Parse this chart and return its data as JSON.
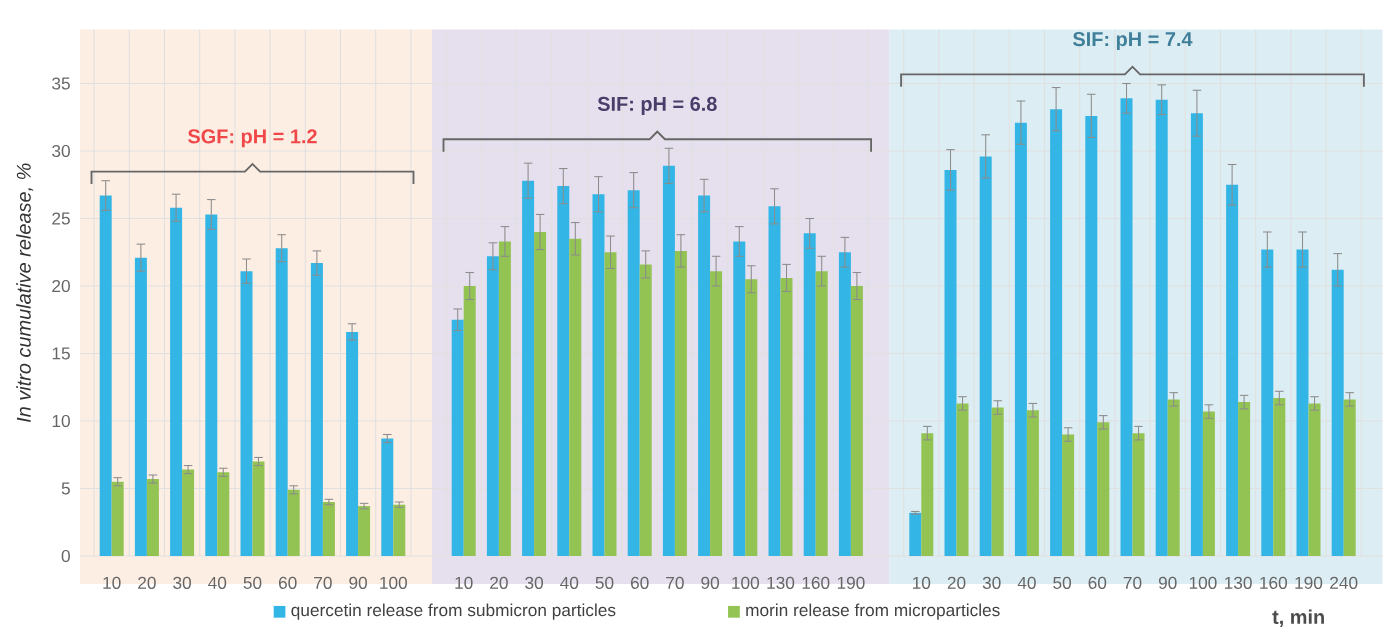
{
  "chart_data": [
    {
      "type": "bar",
      "ylabel": "In vitro cumulative release, %",
      "categories": [
        "10",
        "20",
        "30",
        "40",
        "50",
        "60",
        "70",
        "90",
        "100"
      ],
      "series": [
        {
          "name": "quercetin release from submicron particles",
          "color": "#33b5e5",
          "values": [
            26.7,
            22.1,
            25.8,
            25.3,
            21.1,
            22.8,
            21.7,
            16.6,
            8.7
          ],
          "errors": [
            1.1,
            1.0,
            1.0,
            1.1,
            0.9,
            1.0,
            0.9,
            0.6,
            0.3
          ]
        },
        {
          "name": "morin release from microparticles",
          "color": "#92c353",
          "values": [
            5.5,
            5.7,
            6.4,
            6.2,
            7.0,
            4.9,
            4.0,
            3.7,
            3.8
          ],
          "errors": [
            0.3,
            0.3,
            0.3,
            0.3,
            0.3,
            0.3,
            0.2,
            0.2,
            0.2
          ]
        }
      ],
      "ylim": [
        0,
        39
      ],
      "yticks": [
        0,
        5,
        10,
        15,
        20,
        25,
        30,
        35
      ],
      "grid": true,
      "legend": "bottom",
      "annotations": [
        "SGF: pH = 1.2"
      ]
    },
    {
      "type": "bar",
      "categories": [
        "10",
        "20",
        "30",
        "40",
        "50",
        "60",
        "70",
        "90",
        "100",
        "130",
        "160",
        "190"
      ],
      "series": [
        {
          "color": "#33b5e5",
          "values": [
            17.5,
            22.2,
            27.8,
            27.4,
            26.8,
            27.1,
            28.9,
            26.7,
            23.3,
            25.9,
            23.9,
            22.5
          ],
          "errors": [
            0.8,
            1.0,
            1.3,
            1.3,
            1.3,
            1.3,
            1.3,
            1.2,
            1.1,
            1.3,
            1.1,
            1.1
          ]
        },
        {
          "color": "#92c353",
          "values": [
            20.0,
            23.3,
            24.0,
            23.5,
            22.5,
            21.6,
            22.6,
            21.1,
            20.5,
            20.6,
            21.1,
            20.0
          ],
          "errors": [
            1.0,
            1.1,
            1.3,
            1.2,
            1.2,
            1.0,
            1.2,
            1.1,
            1.0,
            1.0,
            1.1,
            1.0
          ]
        }
      ],
      "ylim": [
        0,
        39
      ],
      "yticks": [
        0,
        5,
        10,
        15,
        20,
        25,
        30,
        35
      ],
      "grid": true,
      "tick_labels": "x",
      "annotations": [
        "SIF: pH = 6.8"
      ]
    },
    {
      "type": "bar",
      "xlabel": "t, min",
      "categories": [
        "10",
        "20",
        "30",
        "40",
        "50",
        "60",
        "70",
        "90",
        "100",
        "130",
        "160",
        "190",
        "240"
      ],
      "series": [
        {
          "color": "#33b5e5",
          "values": [
            3.2,
            28.6,
            29.6,
            32.1,
            33.1,
            32.6,
            33.9,
            33.8,
            32.8,
            27.5,
            22.7,
            22.7,
            21.2
          ],
          "errors": [
            0.1,
            1.5,
            1.6,
            1.6,
            1.6,
            1.6,
            1.1,
            1.1,
            1.7,
            1.5,
            1.3,
            1.3,
            1.2
          ]
        },
        {
          "color": "#92c353",
          "values": [
            9.1,
            11.3,
            11.0,
            10.8,
            9.0,
            9.9,
            9.1,
            11.6,
            10.7,
            11.4,
            11.7,
            11.3,
            11.6
          ],
          "errors": [
            0.5,
            0.5,
            0.5,
            0.5,
            0.5,
            0.5,
            0.5,
            0.5,
            0.5,
            0.5,
            0.5,
            0.5,
            0.5
          ]
        }
      ],
      "ylim": [
        0,
        39
      ],
      "yticks": [
        0,
        5,
        10,
        15,
        20,
        25,
        30,
        35
      ],
      "grid": true,
      "tick_labels": "x",
      "annotations": [
        "SIF: pH = 7.4"
      ]
    }
  ]
}
